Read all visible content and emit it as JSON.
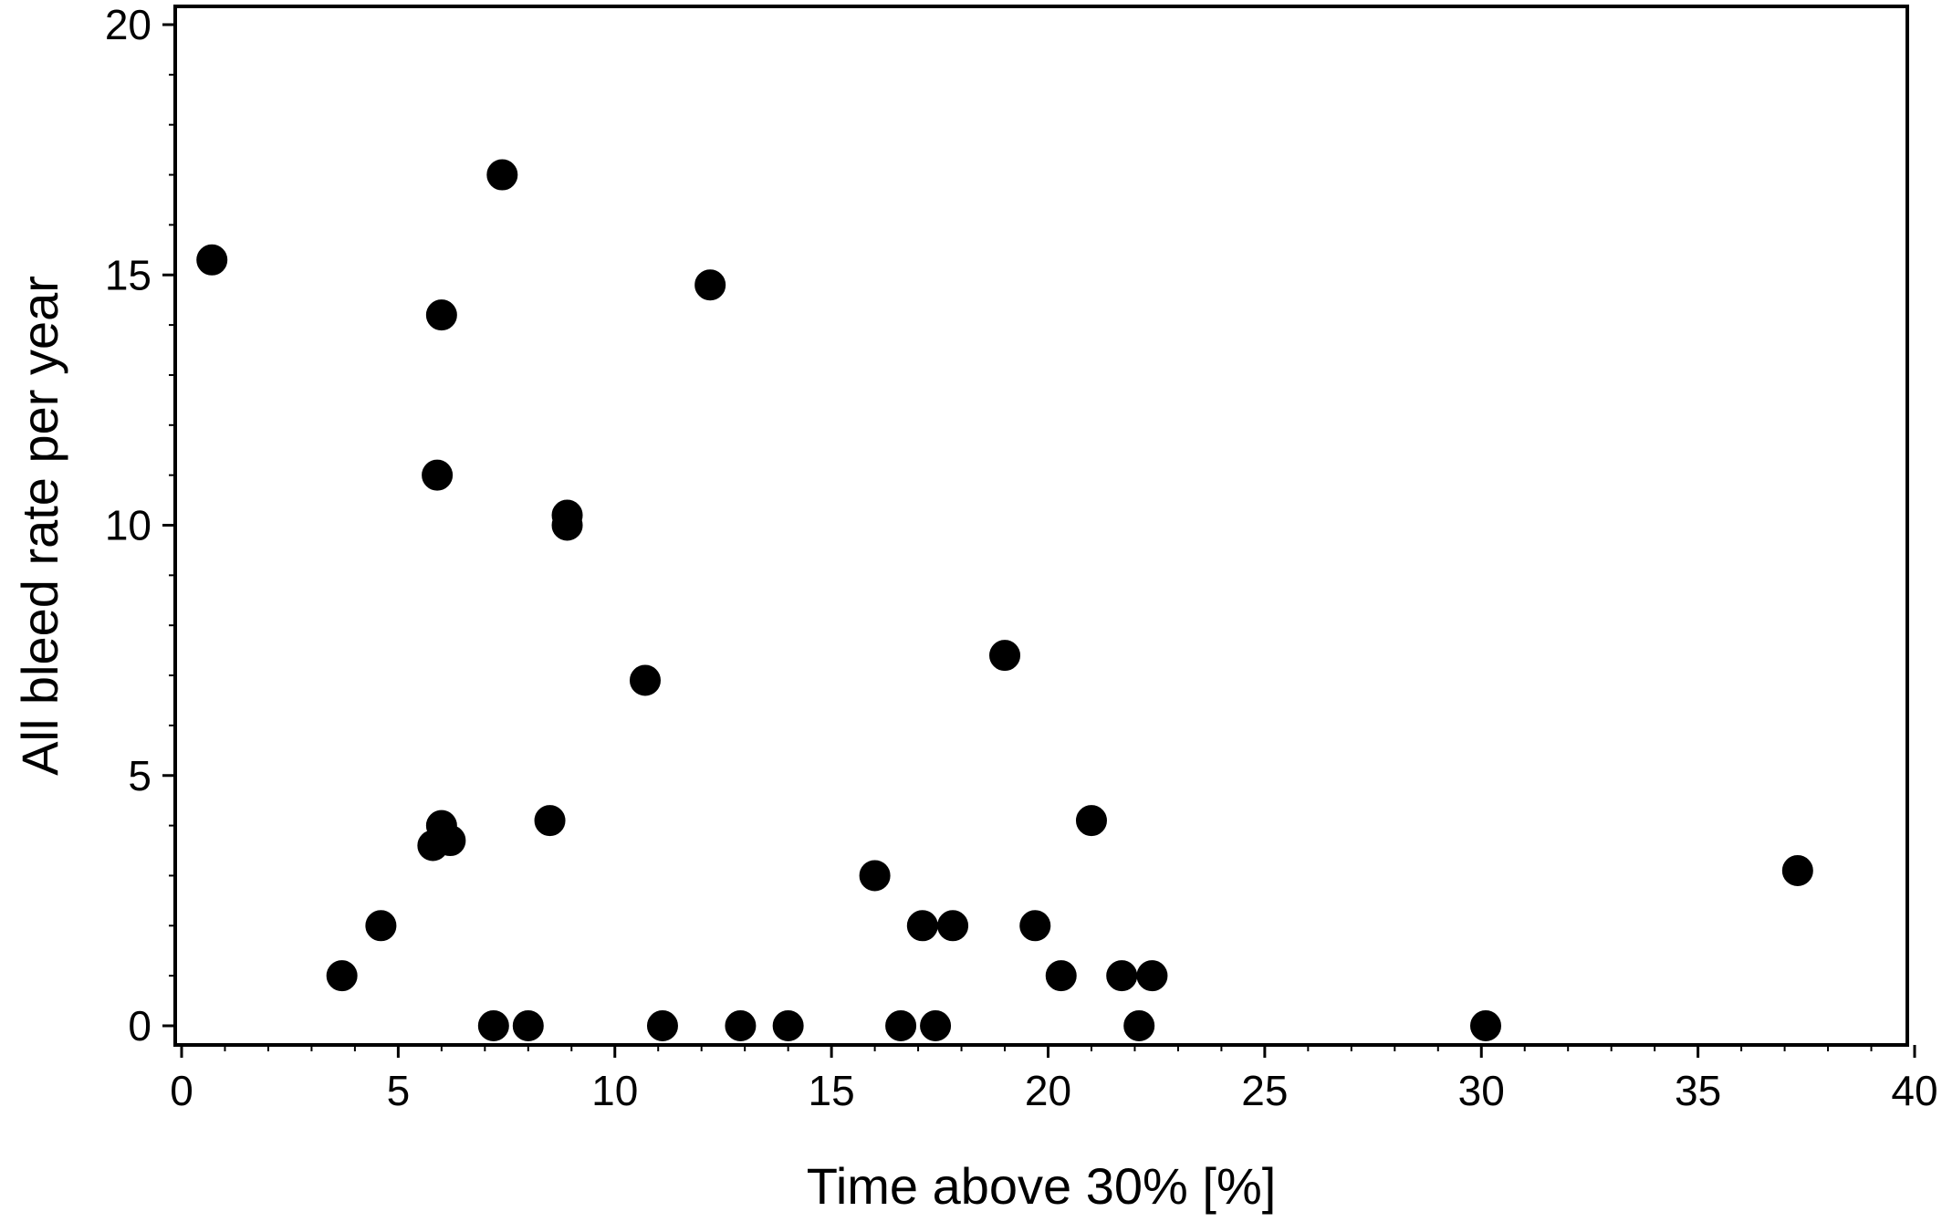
{
  "chart_data": {
    "type": "scatter",
    "title": "",
    "xlabel": "Time above 30% [%]",
    "ylabel": "All bleed rate per year",
    "xlim": [
      0,
      40
    ],
    "ylim": [
      0,
      20
    ],
    "x_ticks": [
      "0",
      "5",
      "10",
      "15",
      "20",
      "25",
      "30",
      "35",
      "40"
    ],
    "y_ticks": [
      "0",
      "5",
      "10",
      "15",
      "20"
    ],
    "grid": false,
    "legend": "none",
    "marker_color": "#000000",
    "points": [
      {
        "x": 0.7,
        "y": 15.3
      },
      {
        "x": 3.7,
        "y": 1.0
      },
      {
        "x": 4.6,
        "y": 2.0
      },
      {
        "x": 5.8,
        "y": 3.6
      },
      {
        "x": 6.0,
        "y": 4.0
      },
      {
        "x": 6.2,
        "y": 3.7
      },
      {
        "x": 5.9,
        "y": 11.0
      },
      {
        "x": 6.0,
        "y": 14.2
      },
      {
        "x": 7.2,
        "y": 0.0
      },
      {
        "x": 7.4,
        "y": 17.0
      },
      {
        "x": 8.0,
        "y": 0.0
      },
      {
        "x": 8.5,
        "y": 4.1
      },
      {
        "x": 8.9,
        "y": 10.0
      },
      {
        "x": 8.9,
        "y": 10.2
      },
      {
        "x": 10.7,
        "y": 6.9
      },
      {
        "x": 11.1,
        "y": 0.0
      },
      {
        "x": 12.2,
        "y": 14.8
      },
      {
        "x": 12.9,
        "y": 0.0
      },
      {
        "x": 14.0,
        "y": 0.0
      },
      {
        "x": 16.0,
        "y": 3.0
      },
      {
        "x": 16.6,
        "y": 0.0
      },
      {
        "x": 17.1,
        "y": 2.0
      },
      {
        "x": 17.4,
        "y": 0.0
      },
      {
        "x": 17.8,
        "y": 2.0
      },
      {
        "x": 19.0,
        "y": 7.4
      },
      {
        "x": 19.7,
        "y": 2.0
      },
      {
        "x": 20.3,
        "y": 1.0
      },
      {
        "x": 21.0,
        "y": 4.1
      },
      {
        "x": 21.7,
        "y": 1.0
      },
      {
        "x": 22.1,
        "y": 0.0
      },
      {
        "x": 22.4,
        "y": 1.0
      },
      {
        "x": 30.1,
        "y": 0.0
      },
      {
        "x": 37.3,
        "y": 3.1
      }
    ]
  }
}
